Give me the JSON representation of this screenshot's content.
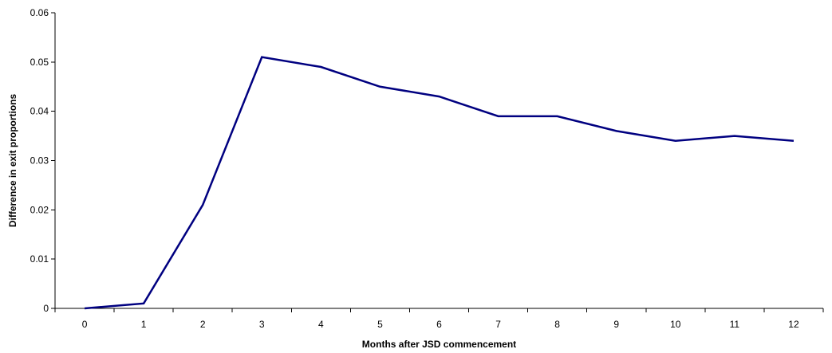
{
  "chart_data": {
    "type": "line",
    "title": "",
    "xlabel": "Months after JSD commencement",
    "ylabel": "Difference in exit proportions",
    "x": [
      "0",
      "1",
      "2",
      "3",
      "4",
      "5",
      "6",
      "7",
      "8",
      "9",
      "10",
      "11",
      "12"
    ],
    "series": [
      {
        "values": [
          0,
          0.001,
          0.021,
          0.051,
          0.049,
          0.045,
          0.043,
          0.039,
          0.039,
          0.036,
          0.034,
          0.035,
          0.034
        ],
        "color": "#000080"
      }
    ],
    "ylim": [
      0,
      0.06
    ],
    "yticks": [
      "0",
      "0.01",
      "0.02",
      "0.03",
      "0.04",
      "0.05",
      "0.06"
    ],
    "grid": false,
    "legend": "none"
  }
}
